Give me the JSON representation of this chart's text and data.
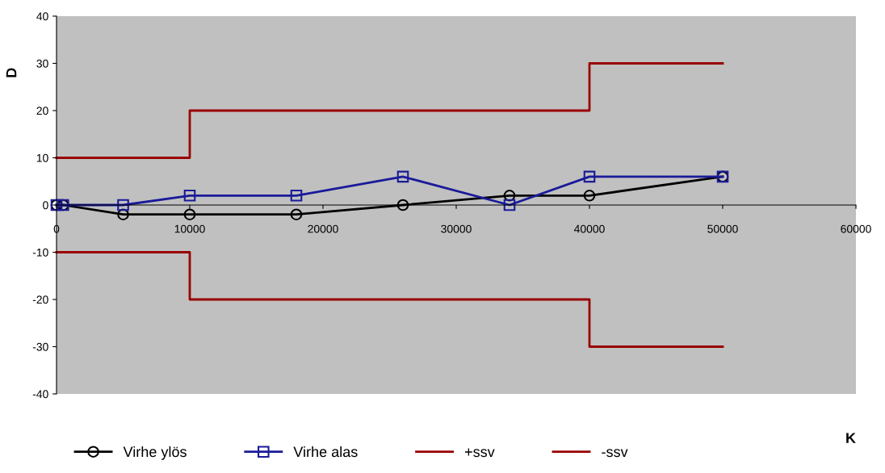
{
  "chart_data": {
    "type": "line",
    "xlabel": "K",
    "ylabel": "D",
    "xlim": [
      0,
      60000
    ],
    "xticks": [
      0,
      10000,
      20000,
      30000,
      40000,
      50000,
      60000
    ],
    "ylim": [
      -40,
      40
    ],
    "yticks": [
      -40,
      -30,
      -20,
      -10,
      0,
      10,
      20,
      30,
      40
    ],
    "grid": false,
    "legend": "bottom",
    "series": [
      {
        "name": "Virhe ylös",
        "color": "#000000",
        "marker": "circle",
        "x": [
          0,
          500,
          5000,
          10000,
          18000,
          26000,
          34000,
          40000,
          50000
        ],
        "values": [
          0,
          0,
          -2,
          -2,
          -2,
          0,
          2,
          2,
          6
        ]
      },
      {
        "name": "Virhe alas",
        "color": "#1a1a99",
        "marker": "square",
        "x": [
          0,
          500,
          5000,
          10000,
          18000,
          26000,
          34000,
          40000,
          50000
        ],
        "values": [
          0,
          0,
          0,
          2,
          2,
          6,
          0,
          6,
          6
        ]
      },
      {
        "name": "+ssv",
        "color": "#990000",
        "marker": "none",
        "x": [
          0,
          10000,
          10000,
          40000,
          40000,
          50000
        ],
        "values": [
          10,
          10,
          20,
          20,
          30,
          30
        ]
      },
      {
        "name": "-ssv",
        "color": "#990000",
        "marker": "none",
        "x": [
          0,
          10000,
          10000,
          40000,
          40000,
          50000
        ],
        "values": [
          -10,
          -10,
          -20,
          -20,
          -30,
          -30
        ]
      }
    ]
  }
}
